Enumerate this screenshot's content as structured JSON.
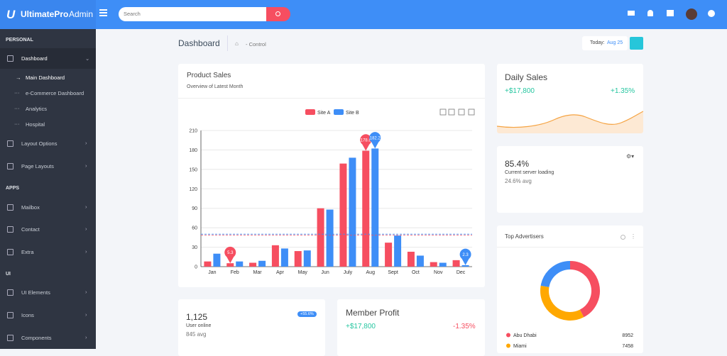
{
  "header": {
    "brand": "UltimatePro",
    "brand_suffix": "Admin",
    "search_placeholder": "Search"
  },
  "sidebar": {
    "sections": [
      {
        "title": "PERSONAL",
        "items": [
          "Dashboard",
          "Layout Options",
          "Page Layouts"
        ]
      },
      {
        "title": "APPS",
        "items": [
          "Mailbox",
          "Contact",
          "Extra"
        ]
      },
      {
        "title": "UI",
        "items": [
          "UI Elements",
          "Icons",
          "Components"
        ]
      }
    ],
    "dashboard_submenu": [
      "Main Dashboard",
      "e-Commerce Dashboard",
      "Analytics",
      "Hospital"
    ]
  },
  "page": {
    "title": "Dashboard",
    "breadcrumb": "- Control",
    "date_prefix": "Today:",
    "date": "Aug 25"
  },
  "product_sales": {
    "type": "bar",
    "title": "Product Sales",
    "subtitle": "Overview of Latest Month",
    "categories": [
      "Jan",
      "Feb",
      "Mar",
      "Apr",
      "May",
      "Jun",
      "July",
      "Aug",
      "Sept",
      "Oct",
      "Nov",
      "Dec"
    ],
    "series": [
      {
        "name": "Site A",
        "color": "#f64e60",
        "values": [
          8,
          5.3,
          6,
          33,
          24,
          90,
          159,
          178.8,
          37,
          23,
          7,
          10
        ]
      },
      {
        "name": "Site B",
        "color": "#3e8ef7",
        "values": [
          20,
          8,
          9,
          28,
          25,
          88,
          168,
          182.2,
          48,
          17,
          6,
          2.3
        ]
      }
    ],
    "ylim": [
      0,
      210
    ],
    "yticks": [
      0,
      30,
      60,
      90,
      120,
      150,
      180,
      210
    ],
    "grid": true
  },
  "daily_sales": {
    "title": "Daily Sales",
    "value": "+$17,800",
    "change": "+1.35%"
  },
  "server": {
    "value": "85.4%",
    "label": "Current server loading",
    "avg": "24.6% avg"
  },
  "top_advertisers": {
    "type": "pie",
    "title": "Top Advertisers",
    "segments": [
      {
        "name": "Abu Dhabi",
        "value": 8952,
        "color": "#f64e60"
      },
      {
        "name": "Miami",
        "value": 7458,
        "color": "#ffa800"
      },
      {
        "name": null,
        "value": 4700,
        "color": "#3e8ef7"
      }
    ]
  },
  "users": {
    "value": "1,125",
    "label": "User online",
    "avg": "845 avg",
    "badge": "+55.6%"
  },
  "member_profit": {
    "title": "Member Profit",
    "value": "+$17,800",
    "change": "-1.35%"
  }
}
